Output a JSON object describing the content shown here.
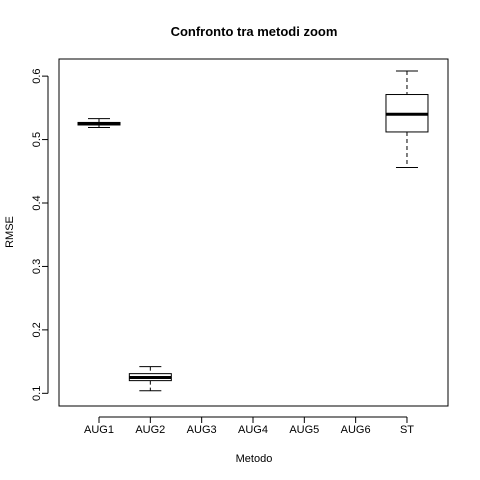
{
  "chart_data": {
    "type": "boxplot",
    "title": "Confronto tra metodi zoom",
    "xlabel": "Metodo",
    "ylabel": "RMSE",
    "categories": [
      "AUG1",
      "AUG2",
      "AUG3",
      "AUG4",
      "AUG5",
      "AUG6",
      "ST"
    ],
    "ylim": [
      0.08,
      0.627
    ],
    "yticks": [
      0.1,
      0.2,
      0.3,
      0.4,
      0.5,
      0.6
    ],
    "ytick_labels": [
      "0.1",
      "0.2",
      "0.3",
      "0.4",
      "0.5",
      "0.6"
    ],
    "boxes": [
      {
        "category": "AUG1",
        "whisker_low": 0.519,
        "q1": 0.523,
        "median": 0.525,
        "q3": 0.527,
        "whisker_high": 0.533
      },
      {
        "category": "AUG2",
        "whisker_low": 0.104,
        "q1": 0.12,
        "median": 0.125,
        "q3": 0.131,
        "whisker_high": 0.142
      },
      {
        "category": "AUG3",
        "whisker_low": null,
        "q1": null,
        "median": null,
        "q3": null,
        "whisker_high": null
      },
      {
        "category": "AUG4",
        "whisker_low": null,
        "q1": null,
        "median": null,
        "q3": null,
        "whisker_high": null
      },
      {
        "category": "AUG5",
        "whisker_low": null,
        "q1": null,
        "median": null,
        "q3": null,
        "whisker_high": null
      },
      {
        "category": "AUG6",
        "whisker_low": null,
        "q1": null,
        "median": null,
        "q3": null,
        "whisker_high": null
      },
      {
        "category": "ST",
        "whisker_low": 0.456,
        "q1": 0.512,
        "median": 0.54,
        "q3": 0.571,
        "whisker_high": 0.608
      }
    ],
    "grid": false,
    "legend": "none"
  }
}
